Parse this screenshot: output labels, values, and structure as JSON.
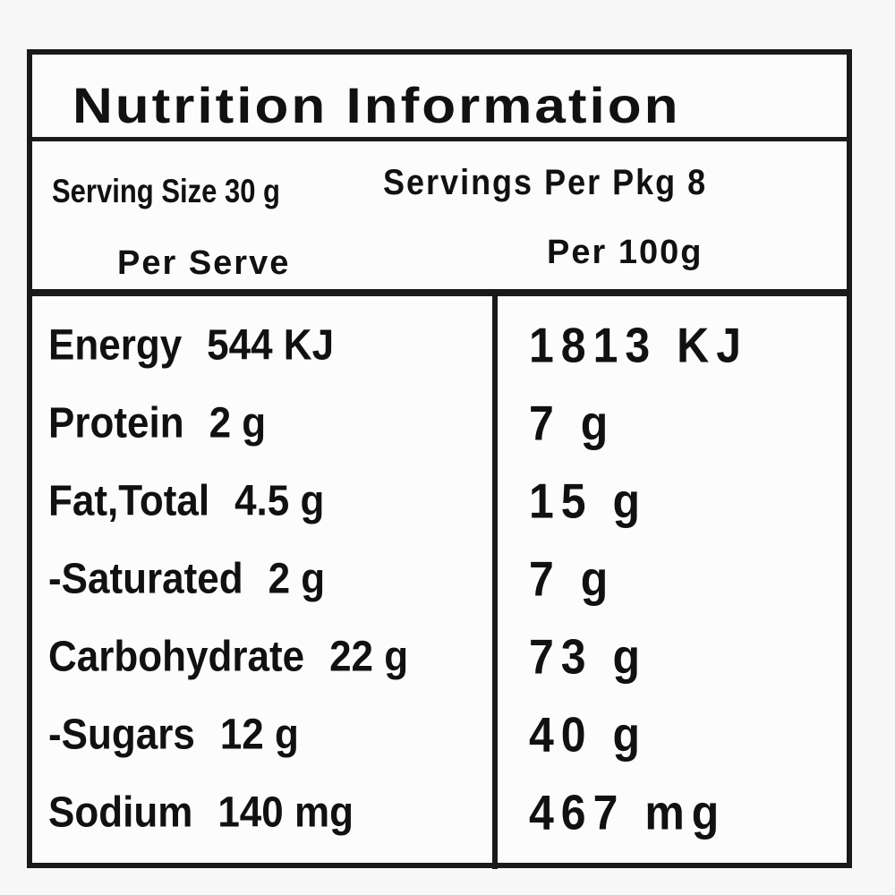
{
  "title": "Nutrition Information",
  "serving": {
    "size": "Serving Size 30 g",
    "per_pkg": "Servings Per Pkg 8"
  },
  "columns": [
    "Per Serve",
    "Per 100g"
  ],
  "rows": [
    [
      "Energy",
      "544 KJ",
      "1813 KJ"
    ],
    [
      "Protein",
      "2 g",
      "7 g"
    ],
    [
      "Fat,Total",
      "4.5 g",
      "15 g"
    ],
    [
      "-Saturated",
      "2 g",
      "7 g"
    ],
    [
      "Carbohydrate",
      "22 g",
      "73 g"
    ],
    [
      "-Sugars",
      "12 g",
      "40 g"
    ],
    [
      "Sodium",
      "140 mg",
      "467 mg"
    ]
  ]
}
